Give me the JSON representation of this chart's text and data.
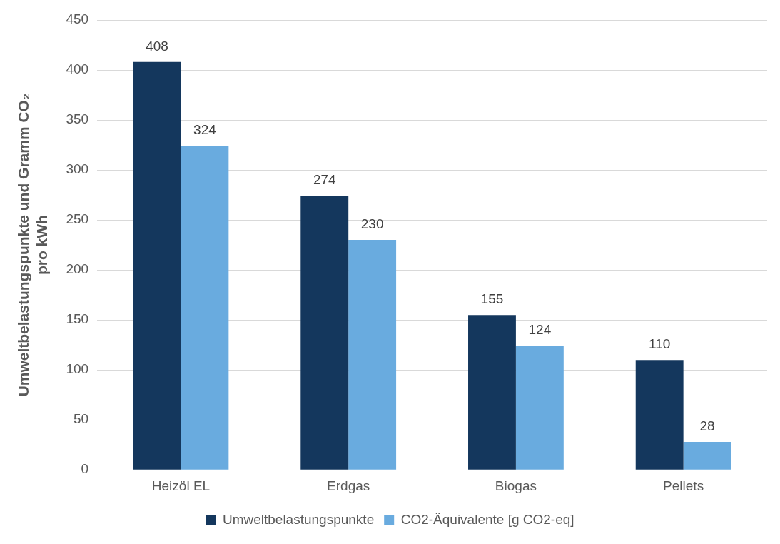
{
  "chart_data": {
    "type": "bar",
    "ylabel": "Umweltbelastungspunkte und Gramm CO₂ pro kWh",
    "categories": [
      "Heizöl EL",
      "Erdgas",
      "Biogas",
      "Pellets"
    ],
    "series": [
      {
        "name": "Umweltbelastungspunkte",
        "color": "#14375d",
        "values": [
          408,
          274,
          155,
          110
        ]
      },
      {
        "name": "CO2-Äquivalente [g CO2-eq]",
        "color": "#69abdf",
        "values": [
          324,
          230,
          124,
          28
        ]
      }
    ],
    "ylim": [
      0,
      450
    ],
    "yticks": [
      0,
      50,
      100,
      150,
      200,
      250,
      300,
      350,
      400,
      450
    ],
    "grid": "y",
    "legend": "bottom",
    "data_labels": true
  }
}
